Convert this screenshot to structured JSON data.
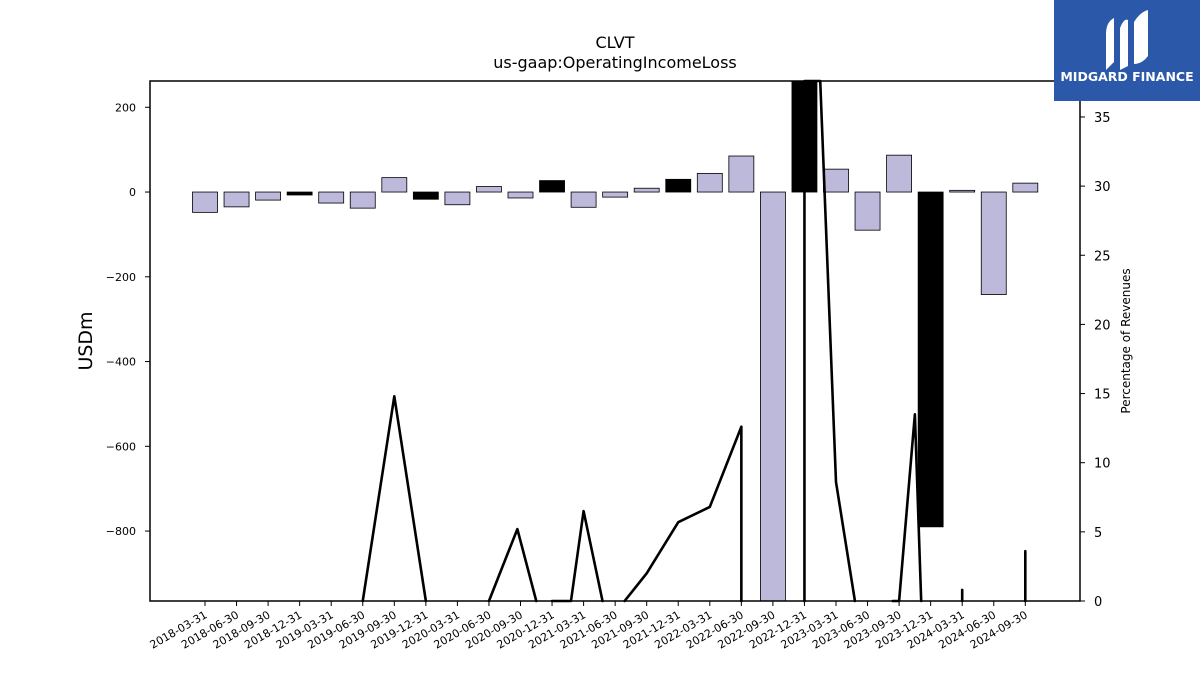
{
  "brand": {
    "name": "MIDGARD FINANCE",
    "color": "#2b58a8"
  },
  "chart_data": {
    "type": "bar",
    "title": "CLVT",
    "subtitle": "us-gaap:OperatingIncomeLoss",
    "ylabel": "USDm",
    "y2label": "Percentage of Revenues",
    "ylim": [
      -965,
      262
    ],
    "y2lim": [
      0,
      37.6
    ],
    "yticks": [
      200,
      0,
      -200,
      -400,
      -600,
      -800
    ],
    "y2ticks": [
      0,
      5,
      10,
      15,
      20,
      25,
      30,
      35
    ],
    "categories": [
      "2018-03-31",
      "2018-06-30",
      "2018-09-30",
      "2018-12-31",
      "2019-03-31",
      "2019-06-30",
      "2019-09-30",
      "2019-12-31",
      "2020-03-31",
      "2020-06-30",
      "2020-09-30",
      "2020-12-31",
      "2021-03-31",
      "2021-06-30",
      "2021-09-30",
      "2021-12-31",
      "2022-03-31",
      "2022-06-30",
      "2022-09-30",
      "2022-12-31",
      "2023-03-31",
      "2023-06-30",
      "2023-09-30",
      "2023-12-31",
      "2024-03-31",
      "2024-06-30",
      "2024-09-30"
    ],
    "series": [
      {
        "type": "bar",
        "values": [
          -48,
          -35,
          -19,
          -7,
          -26,
          -38,
          34,
          -17,
          -30,
          13,
          -14,
          27,
          -36,
          -12,
          9,
          30,
          44,
          85,
          -965,
          262,
          54,
          -90,
          87,
          -790,
          4,
          -242,
          21
        ],
        "colors": [
          "#bcb9da",
          "#bcb9da",
          "#bcb9da",
          "#000000",
          "#bcb9da",
          "#bcb9da",
          "#bcb9da",
          "#000000",
          "#bcb9da",
          "#bcb9da",
          "#bcb9da",
          "#000000",
          "#bcb9da",
          "#bcb9da",
          "#bcb9da",
          "#000000",
          "#bcb9da",
          "#bcb9da",
          "#bcb9da",
          "#000000",
          "#bcb9da",
          "#bcb9da",
          "#bcb9da",
          "#000000",
          "#bcb9da",
          "#bcb9da",
          "#bcb9da"
        ]
      },
      {
        "type": "line",
        "axis": "right",
        "color": "#000000",
        "segments": [
          [
            [
              5,
              0
            ],
            [
              6,
              14.8
            ],
            [
              7,
              0
            ]
          ],
          [
            [
              9,
              0
            ],
            [
              9.9,
              5.2
            ],
            [
              10.5,
              0
            ]
          ],
          [
            [
              11,
              0
            ],
            [
              11.6,
              0
            ],
            [
              12,
              6.5
            ],
            [
              12.6,
              0
            ]
          ],
          [
            [
              13.3,
              0
            ],
            [
              14,
              2.0
            ],
            [
              15,
              5.7
            ],
            [
              16,
              6.8
            ],
            [
              17,
              12.6
            ],
            [
              17,
              0
            ]
          ],
          [
            [
              19,
              0
            ],
            [
              19,
              37.6
            ],
            [
              19.5,
              37.6
            ],
            [
              20,
              8.6
            ],
            [
              20.6,
              0
            ]
          ],
          [
            [
              21.8,
              0
            ],
            [
              22,
              0
            ],
            [
              22.5,
              13.5
            ],
            [
              22.7,
              0
            ]
          ],
          [
            [
              24,
              0
            ],
            [
              24,
              0.8
            ]
          ],
          [
            [
              26,
              0
            ],
            [
              26,
              3.6
            ]
          ]
        ]
      }
    ],
    "grid": false
  }
}
